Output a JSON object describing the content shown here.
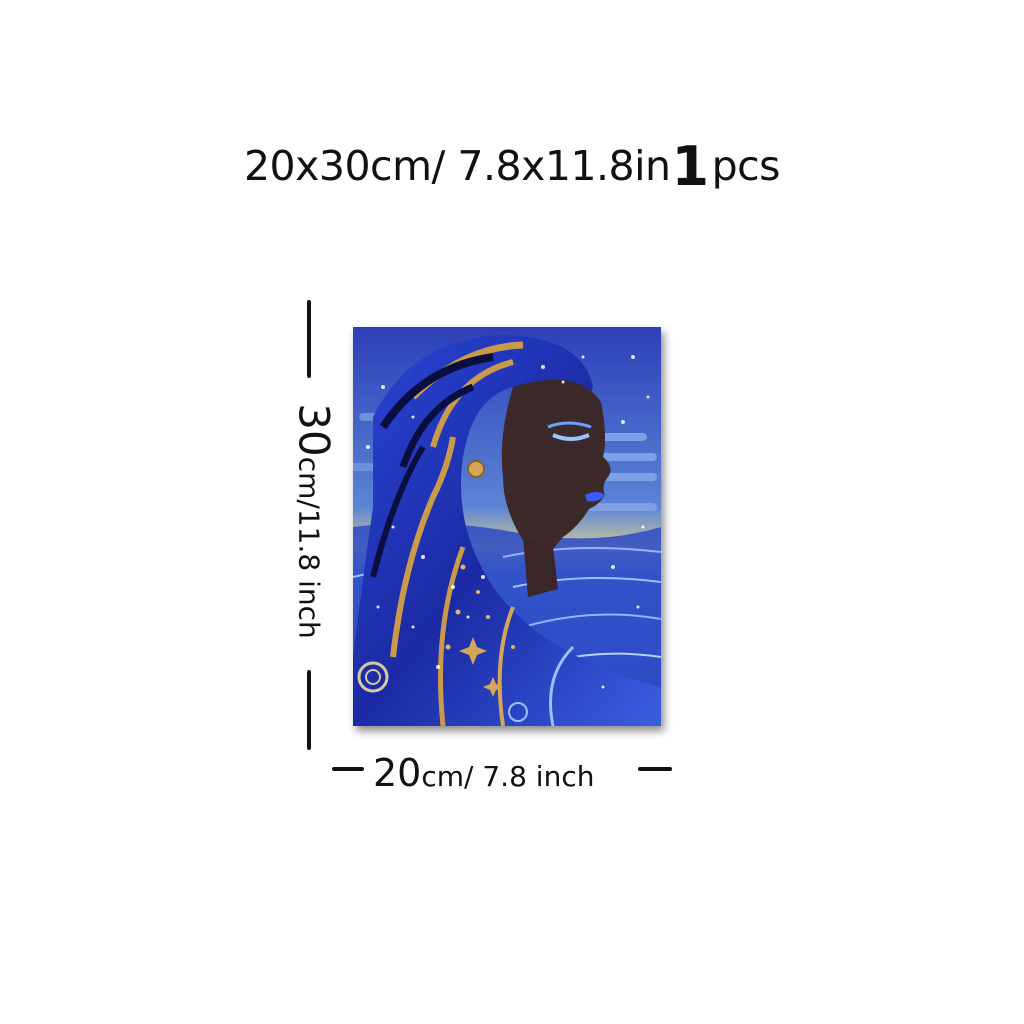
{
  "title": {
    "size_text": "20x30cm/ 7.8x11.8in",
    "quantity_number": "1",
    "quantity_unit": "pcs"
  },
  "dimensions": {
    "height_number": "30",
    "height_unit_text": "cm/11.8 inch",
    "width_number": "20",
    "width_unit_text": "cm/ 7.8 inch"
  },
  "artwork": {
    "subject": "woman-in-blue-headscarf-painting",
    "colors": {
      "sky": "#4a74d0",
      "sea": "#2a48c4",
      "scarf": "#1a2aa8",
      "stripe_gold": "#c99a4a",
      "skin": "#3c2a2a",
      "lips": "#3a5bff"
    }
  }
}
